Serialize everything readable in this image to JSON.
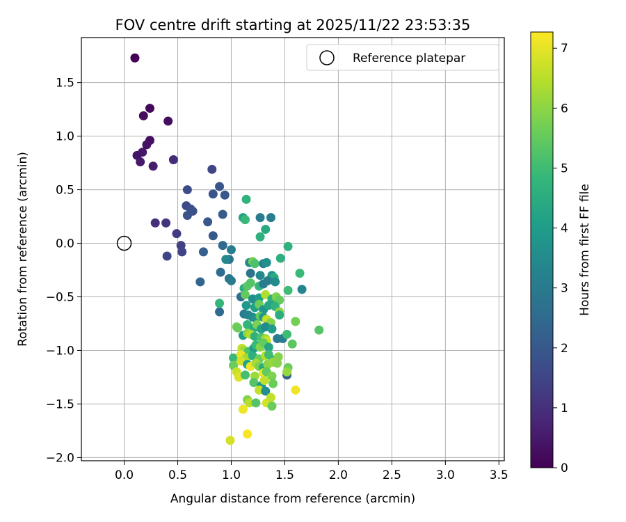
{
  "chart_data": {
    "type": "scatter",
    "title": "FOV centre drift starting at 2025/11/22 23:53:35",
    "xlabel": "Angular distance from reference (arcmin)",
    "ylabel": "Rotation from reference (arcmin)",
    "xlim": [
      -0.4,
      3.55
    ],
    "ylim": [
      -2.03,
      1.92
    ],
    "xticks": [
      "0.0",
      "0.5",
      "1.0",
      "1.5",
      "2.0",
      "2.5",
      "3.0",
      "3.5"
    ],
    "xtick_values": [
      0.0,
      0.5,
      1.0,
      1.5,
      2.0,
      2.5,
      3.0,
      3.5
    ],
    "yticks": [
      "1.5",
      "1.0",
      "0.5",
      "0.0",
      "−0.5",
      "−1.0",
      "−1.5",
      "−2.0"
    ],
    "ytick_values": [
      1.5,
      1.0,
      0.5,
      0.0,
      -0.5,
      -1.0,
      -1.5,
      -2.0
    ],
    "grid": true,
    "legend": {
      "position": "top-right",
      "entries": [
        {
          "label": "Reference platepar",
          "x": 0,
          "y": 0
        }
      ]
    },
    "colorbar": {
      "label": "Hours from first FF file",
      "range": [
        0,
        7.27
      ],
      "ticks": [
        "0",
        "1",
        "2",
        "3",
        "4",
        "5",
        "6",
        "7"
      ],
      "tick_values": [
        0,
        1,
        2,
        3,
        4,
        5,
        6,
        7
      ],
      "colormap": "viridis"
    },
    "points": [
      {
        "x": 0.1,
        "y": 1.73,
        "t": 0.05
      },
      {
        "x": 0.24,
        "y": 1.26,
        "t": 0.15
      },
      {
        "x": 0.18,
        "y": 1.19,
        "t": 0.2
      },
      {
        "x": 0.41,
        "y": 1.14,
        "t": 0.25
      },
      {
        "x": 0.24,
        "y": 0.96,
        "t": 0.3
      },
      {
        "x": 0.21,
        "y": 0.92,
        "t": 0.35
      },
      {
        "x": 0.12,
        "y": 0.82,
        "t": 0.4
      },
      {
        "x": 0.17,
        "y": 0.85,
        "t": 0.45
      },
      {
        "x": 0.15,
        "y": 0.76,
        "t": 0.5
      },
      {
        "x": 0.27,
        "y": 0.72,
        "t": 0.55
      },
      {
        "x": 0.46,
        "y": 0.78,
        "t": 0.9
      },
      {
        "x": 0.29,
        "y": 0.19,
        "t": 1.0
      },
      {
        "x": 0.39,
        "y": 0.19,
        "t": 1.1
      },
      {
        "x": 0.49,
        "y": 0.09,
        "t": 1.3
      },
      {
        "x": 0.53,
        "y": -0.02,
        "t": 1.4
      },
      {
        "x": 0.54,
        "y": -0.08,
        "t": 1.45
      },
      {
        "x": 0.4,
        "y": -0.12,
        "t": 1.5
      },
      {
        "x": 0.58,
        "y": 0.35,
        "t": 1.6
      },
      {
        "x": 0.59,
        "y": 0.5,
        "t": 1.7
      },
      {
        "x": 0.62,
        "y": 0.32,
        "t": 1.75
      },
      {
        "x": 0.64,
        "y": 0.3,
        "t": 1.8
      },
      {
        "x": 0.59,
        "y": 0.26,
        "t": 1.85
      },
      {
        "x": 0.82,
        "y": 0.69,
        "t": 1.5
      },
      {
        "x": 0.83,
        "y": 0.46,
        "t": 1.9
      },
      {
        "x": 0.89,
        "y": 0.53,
        "t": 1.95
      },
      {
        "x": 0.94,
        "y": 0.45,
        "t": 2.0
      },
      {
        "x": 0.78,
        "y": 0.2,
        "t": 2.0
      },
      {
        "x": 0.83,
        "y": 0.07,
        "t": 2.05
      },
      {
        "x": 0.92,
        "y": 0.27,
        "t": 2.1
      },
      {
        "x": 0.74,
        "y": -0.08,
        "t": 2.2
      },
      {
        "x": 0.71,
        "y": -0.36,
        "t": 2.4
      },
      {
        "x": 0.92,
        "y": -0.02,
        "t": 2.5
      },
      {
        "x": 0.9,
        "y": -0.27,
        "t": 2.6
      },
      {
        "x": 0.89,
        "y": -0.64,
        "t": 2.5
      },
      {
        "x": 0.89,
        "y": -0.56,
        "t": 4.8
      },
      {
        "x": 0.98,
        "y": -0.15,
        "t": 2.7
      },
      {
        "x": 0.98,
        "y": -0.33,
        "t": 2.9
      },
      {
        "x": 1.0,
        "y": -0.35,
        "t": 3.0
      },
      {
        "x": 1.0,
        "y": -0.06,
        "t": 3.1
      },
      {
        "x": 0.95,
        "y": -0.15,
        "t": 3.4
      },
      {
        "x": 1.14,
        "y": 0.41,
        "t": 4.7
      },
      {
        "x": 1.11,
        "y": 0.24,
        "t": 4.2
      },
      {
        "x": 1.13,
        "y": 0.22,
        "t": 4.9
      },
      {
        "x": 1.27,
        "y": 0.24,
        "t": 3.0
      },
      {
        "x": 1.37,
        "y": 0.24,
        "t": 3.1
      },
      {
        "x": 1.32,
        "y": 0.13,
        "t": 4.4
      },
      {
        "x": 1.27,
        "y": 0.06,
        "t": 4.6
      },
      {
        "x": 1.53,
        "y": -0.03,
        "t": 4.7
      },
      {
        "x": 1.17,
        "y": -0.18,
        "t": 3.5
      },
      {
        "x": 1.2,
        "y": -0.17,
        "t": 5.7
      },
      {
        "x": 1.22,
        "y": -0.19,
        "t": 5.2
      },
      {
        "x": 1.3,
        "y": -0.19,
        "t": 3.2
      },
      {
        "x": 1.33,
        "y": -0.18,
        "t": 3.6
      },
      {
        "x": 1.46,
        "y": -0.14,
        "t": 4.6
      },
      {
        "x": 1.18,
        "y": -0.28,
        "t": 2.8
      },
      {
        "x": 1.27,
        "y": -0.3,
        "t": 3.4
      },
      {
        "x": 1.38,
        "y": -0.3,
        "t": 3.8
      },
      {
        "x": 1.4,
        "y": -0.32,
        "t": 4.5
      },
      {
        "x": 1.64,
        "y": -0.28,
        "t": 4.9
      },
      {
        "x": 1.12,
        "y": -0.42,
        "t": 4.5
      },
      {
        "x": 1.15,
        "y": -0.4,
        "t": 5.4
      },
      {
        "x": 1.18,
        "y": -0.37,
        "t": 5.3
      },
      {
        "x": 1.26,
        "y": -0.4,
        "t": 4.8
      },
      {
        "x": 1.3,
        "y": -0.38,
        "t": 3.0
      },
      {
        "x": 1.34,
        "y": -0.35,
        "t": 3.1
      },
      {
        "x": 1.41,
        "y": -0.36,
        "t": 3.5
      },
      {
        "x": 1.53,
        "y": -0.44,
        "t": 5.0
      },
      {
        "x": 1.66,
        "y": -0.43,
        "t": 3.3
      },
      {
        "x": 1.09,
        "y": -0.5,
        "t": 2.6
      },
      {
        "x": 1.13,
        "y": -0.48,
        "t": 5.5
      },
      {
        "x": 1.2,
        "y": -0.52,
        "t": 3.6
      },
      {
        "x": 1.26,
        "y": -0.51,
        "t": 4.0
      },
      {
        "x": 1.32,
        "y": -0.48,
        "t": 6.4
      },
      {
        "x": 1.38,
        "y": -0.52,
        "t": 4.6
      },
      {
        "x": 1.42,
        "y": -0.5,
        "t": 5.8
      },
      {
        "x": 1.45,
        "y": -0.53,
        "t": 5.5
      },
      {
        "x": 1.14,
        "y": -0.58,
        "t": 3.9
      },
      {
        "x": 1.22,
        "y": -0.6,
        "t": 4.1
      },
      {
        "x": 1.26,
        "y": -0.57,
        "t": 5.6
      },
      {
        "x": 1.3,
        "y": -0.62,
        "t": 3.8
      },
      {
        "x": 1.35,
        "y": -0.58,
        "t": 4.3
      },
      {
        "x": 1.41,
        "y": -0.59,
        "t": 4.7
      },
      {
        "x": 1.45,
        "y": -0.64,
        "t": 6.0
      },
      {
        "x": 1.12,
        "y": -0.66,
        "t": 3.0
      },
      {
        "x": 1.16,
        "y": -0.67,
        "t": 3.3
      },
      {
        "x": 1.2,
        "y": -0.69,
        "t": 3.4
      },
      {
        "x": 1.23,
        "y": -0.7,
        "t": 3.7
      },
      {
        "x": 1.27,
        "y": -0.68,
        "t": 5.5
      },
      {
        "x": 1.3,
        "y": -0.69,
        "t": 3.9
      },
      {
        "x": 1.33,
        "y": -0.71,
        "t": 6.6
      },
      {
        "x": 1.37,
        "y": -0.74,
        "t": 5.9
      },
      {
        "x": 1.45,
        "y": -0.67,
        "t": 4.5
      },
      {
        "x": 1.6,
        "y": -0.73,
        "t": 5.7
      },
      {
        "x": 1.05,
        "y": -0.78,
        "t": 5.8
      },
      {
        "x": 1.06,
        "y": -0.79,
        "t": 5.6
      },
      {
        "x": 1.15,
        "y": -0.76,
        "t": 4.8
      },
      {
        "x": 1.21,
        "y": -0.79,
        "t": 4.5
      },
      {
        "x": 1.24,
        "y": -0.76,
        "t": 5.8
      },
      {
        "x": 1.28,
        "y": -0.8,
        "t": 4.2
      },
      {
        "x": 1.32,
        "y": -0.78,
        "t": 3.5
      },
      {
        "x": 1.38,
        "y": -0.8,
        "t": 4.0
      },
      {
        "x": 1.82,
        "y": -0.81,
        "t": 5.3
      },
      {
        "x": 1.11,
        "y": -0.86,
        "t": 4.0
      },
      {
        "x": 1.15,
        "y": -0.84,
        "t": 6.0
      },
      {
        "x": 1.18,
        "y": -0.85,
        "t": 6.4
      },
      {
        "x": 1.22,
        "y": -0.87,
        "t": 4.6
      },
      {
        "x": 1.28,
        "y": -0.88,
        "t": 5.2
      },
      {
        "x": 1.32,
        "y": -0.89,
        "t": 6.2
      },
      {
        "x": 1.33,
        "y": -0.91,
        "t": 6.7
      },
      {
        "x": 1.43,
        "y": -0.89,
        "t": 3.0
      },
      {
        "x": 1.48,
        "y": -0.89,
        "t": 3.1
      },
      {
        "x": 1.52,
        "y": -0.85,
        "t": 5.0
      },
      {
        "x": 1.57,
        "y": -0.94,
        "t": 5.4
      },
      {
        "x": 1.1,
        "y": -0.98,
        "t": 6.6
      },
      {
        "x": 1.12,
        "y": -1.0,
        "t": 6.2
      },
      {
        "x": 1.16,
        "y": -1.01,
        "t": 5.2
      },
      {
        "x": 1.21,
        "y": -0.98,
        "t": 4.0
      },
      {
        "x": 1.23,
        "y": -0.95,
        "t": 4.9
      },
      {
        "x": 1.27,
        "y": -0.97,
        "t": 5.9
      },
      {
        "x": 1.3,
        "y": -0.93,
        "t": 5.5
      },
      {
        "x": 1.35,
        "y": -0.97,
        "t": 4.3
      },
      {
        "x": 1.02,
        "y": -1.07,
        "t": 4.9
      },
      {
        "x": 1.09,
        "y": -1.04,
        "t": 7.0
      },
      {
        "x": 1.14,
        "y": -1.07,
        "t": 6.3
      },
      {
        "x": 1.2,
        "y": -1.05,
        "t": 4.6
      },
      {
        "x": 1.26,
        "y": -1.08,
        "t": 5.6
      },
      {
        "x": 1.32,
        "y": -1.05,
        "t": 6.5
      },
      {
        "x": 1.35,
        "y": -1.04,
        "t": 5.0
      },
      {
        "x": 1.39,
        "y": -1.09,
        "t": 4.8
      },
      {
        "x": 1.44,
        "y": -1.06,
        "t": 5.9
      },
      {
        "x": 1.02,
        "y": -1.14,
        "t": 5.6
      },
      {
        "x": 1.09,
        "y": -1.1,
        "t": 6.8
      },
      {
        "x": 1.15,
        "y": -1.13,
        "t": 4.2
      },
      {
        "x": 1.18,
        "y": -1.15,
        "t": 7.1
      },
      {
        "x": 1.23,
        "y": -1.12,
        "t": 6.3
      },
      {
        "x": 1.26,
        "y": -1.15,
        "t": 5.8
      },
      {
        "x": 1.3,
        "y": -1.16,
        "t": 4.4
      },
      {
        "x": 1.34,
        "y": -1.13,
        "t": 6.0
      },
      {
        "x": 1.39,
        "y": -1.11,
        "t": 6.1
      },
      {
        "x": 1.43,
        "y": -1.12,
        "t": 5.9
      },
      {
        "x": 1.53,
        "y": -1.16,
        "t": 5.6
      },
      {
        "x": 1.52,
        "y": -1.23,
        "t": 2.2
      },
      {
        "x": 1.05,
        "y": -1.2,
        "t": 6.7
      },
      {
        "x": 1.07,
        "y": -1.25,
        "t": 6.9
      },
      {
        "x": 1.13,
        "y": -1.23,
        "t": 5.1
      },
      {
        "x": 1.22,
        "y": -1.24,
        "t": 6.2
      },
      {
        "x": 1.3,
        "y": -1.21,
        "t": 7.0
      },
      {
        "x": 1.33,
        "y": -1.2,
        "t": 5.5
      },
      {
        "x": 1.38,
        "y": -1.24,
        "t": 5.8
      },
      {
        "x": 1.52,
        "y": -1.2,
        "t": 6.1
      },
      {
        "x": 1.21,
        "y": -1.3,
        "t": 5.3
      },
      {
        "x": 1.28,
        "y": -1.33,
        "t": 3.9
      },
      {
        "x": 1.31,
        "y": -1.28,
        "t": 6.6
      },
      {
        "x": 1.39,
        "y": -1.31,
        "t": 5.6
      },
      {
        "x": 1.26,
        "y": -1.37,
        "t": 6.6
      },
      {
        "x": 1.32,
        "y": -1.38,
        "t": 3.6
      },
      {
        "x": 1.6,
        "y": -1.37,
        "t": 7.1
      },
      {
        "x": 1.15,
        "y": -1.46,
        "t": 5.9
      },
      {
        "x": 1.17,
        "y": -1.49,
        "t": 6.5
      },
      {
        "x": 1.23,
        "y": -1.49,
        "t": 5.3
      },
      {
        "x": 1.33,
        "y": -1.49,
        "t": 6.8
      },
      {
        "x": 1.37,
        "y": -1.44,
        "t": 6.6
      },
      {
        "x": 1.38,
        "y": -1.52,
        "t": 5.6
      },
      {
        "x": 1.11,
        "y": -1.55,
        "t": 7.1
      },
      {
        "x": 1.15,
        "y": -1.78,
        "t": 7.2
      },
      {
        "x": 0.99,
        "y": -1.84,
        "t": 6.8
      }
    ]
  }
}
